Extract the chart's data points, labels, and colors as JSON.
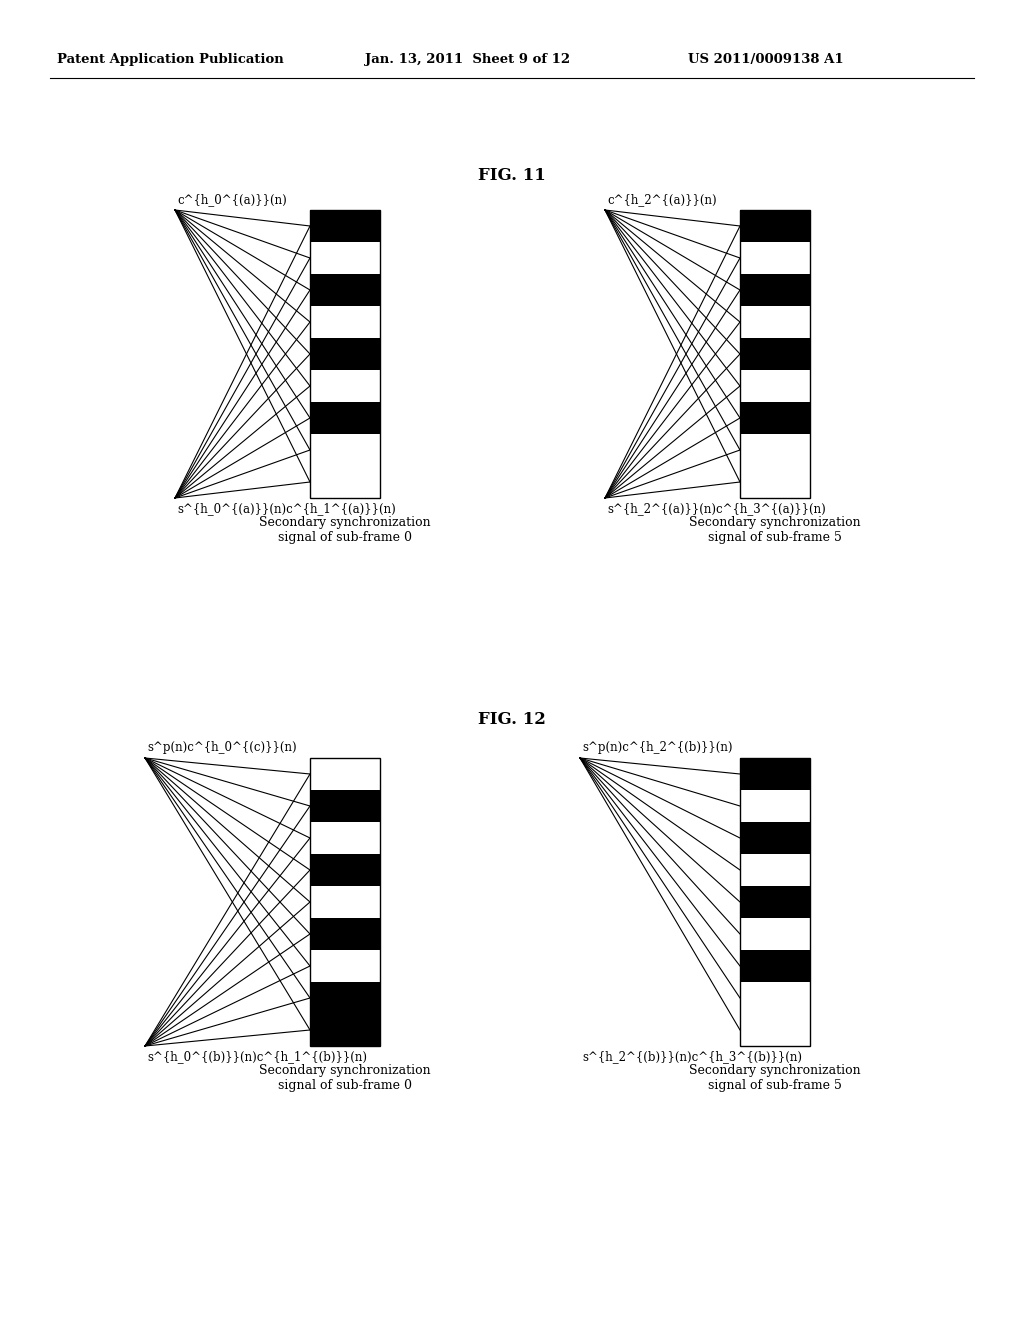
{
  "header_left": "Patent Application Publication",
  "header_middle": "Jan. 13, 2011  Sheet 9 of 12",
  "header_right": "US 2011/0009138 A1",
  "fig11_title": "FIG. 11",
  "fig12_title": "FIG. 12",
  "diagrams": [
    {
      "top_label_raw": "c^{h_0^{(a)}}(n)",
      "bottom_label_raw": "s^{h_0^{(a)}}(n)c^{h_1^{(a)}}(n)",
      "caption_line1": "Secondary synchronization",
      "caption_line2": "signal of sub-frame 0",
      "fig": 11,
      "col": 0,
      "dual_fan": true,
      "bars": [
        1,
        0,
        1,
        0,
        1,
        0,
        1,
        0,
        0
      ]
    },
    {
      "top_label_raw": "c^{h_2^{(a)}}(n)",
      "bottom_label_raw": "s^{h_2^{(a)}}(n)c^{h_3^{(a)}}(n)",
      "caption_line1": "Secondary synchronization",
      "caption_line2": "signal of sub-frame 5",
      "fig": 11,
      "col": 1,
      "dual_fan": true,
      "bars": [
        1,
        0,
        1,
        0,
        1,
        0,
        1,
        0,
        0
      ]
    },
    {
      "top_label_raw": "s^p(n)c^{h_0^{(c)}}(n)",
      "bottom_label_raw": "s^{h_0^{(b)}}(n)c^{h_1^{(b)}}(n)",
      "caption_line1": "Secondary synchronization",
      "caption_line2": "signal of sub-frame 0",
      "fig": 12,
      "col": 0,
      "dual_fan": true,
      "bars": [
        0,
        1,
        0,
        1,
        0,
        1,
        0,
        1,
        1
      ]
    },
    {
      "top_label_raw": "s^p(n)c^{h_2^{(b)}}(n)",
      "bottom_label_raw": "s^{h_2^{(b)}}(n)c^{h_3^{(b)}}(n)",
      "caption_line1": "Secondary synchronization",
      "caption_line2": "signal of sub-frame 5",
      "fig": 12,
      "col": 1,
      "dual_fan": false,
      "bars": [
        1,
        0,
        1,
        0,
        1,
        0,
        1,
        0,
        0
      ]
    }
  ],
  "bg_color": "#ffffff",
  "bar_black": "#000000",
  "bar_white": "#ffffff",
  "line_color": "#000000",
  "header_fontsize": 9.5,
  "fig_label_fontsize": 12,
  "caption_fontsize": 9,
  "label_fontsize": 8.5
}
